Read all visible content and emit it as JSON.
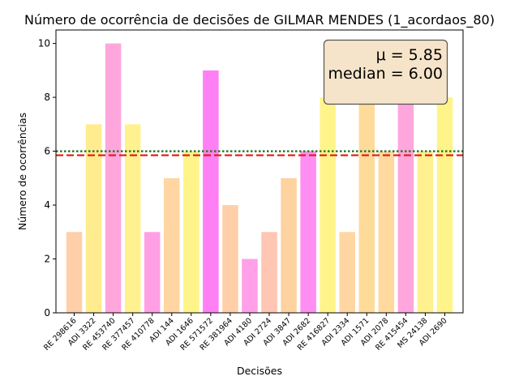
{
  "chart_data": {
    "type": "bar",
    "title": "Número de ocorrência de decisões de GILMAR MENDES (1_acordaos_80)",
    "xlabel": "Decisões",
    "ylabel": "Número de ocorrências",
    "ylim": [
      0,
      10.5
    ],
    "yticks": [
      0,
      2,
      4,
      6,
      8,
      10
    ],
    "grid": false,
    "categories": [
      "RE 298616",
      "ADI 3322",
      "RE 453740",
      "RE 377457",
      "RE 410778",
      "ADI 144",
      "ADI 1646",
      "RE 571572",
      "RE 381964",
      "ADI 4180",
      "ADI 2724",
      "ADI 3847",
      "ADI 2682",
      "RE 416827",
      "ADI 2334",
      "ADI 1571",
      "ADI 2078",
      "RE 415454",
      "MS 24138",
      "ADI 2690"
    ],
    "values": [
      3,
      7,
      10,
      7,
      3,
      5,
      6,
      9,
      4,
      2,
      3,
      5,
      6,
      8,
      3,
      8,
      6,
      8,
      6,
      8
    ],
    "colors": [
      "#ffcfa9",
      "#ffec8f",
      "#ffa6dd",
      "#fff18f",
      "#ffa0e5",
      "#ffd6a2",
      "#fff48a",
      "#ff80f5",
      "#ffcfa9",
      "#ffa0e8",
      "#ffc6b4",
      "#ffd39f",
      "#ff8ef3",
      "#fff48a",
      "#ffd6a2",
      "#ffdb9a",
      "#ffd99d",
      "#ffa6dd",
      "#fff18f",
      "#fff48a"
    ],
    "mean": 5.85,
    "median": 6.0,
    "mean_line": {
      "color": "#e8140c",
      "style": "dashed"
    },
    "median_line": {
      "color": "#2a7a2a",
      "style": "dotted"
    },
    "stats_box": {
      "line1": "μ = 5.85",
      "line2": "median = 6.00",
      "placement": "top-right",
      "fill": "#f5e4c9",
      "edge": "#555555"
    }
  }
}
